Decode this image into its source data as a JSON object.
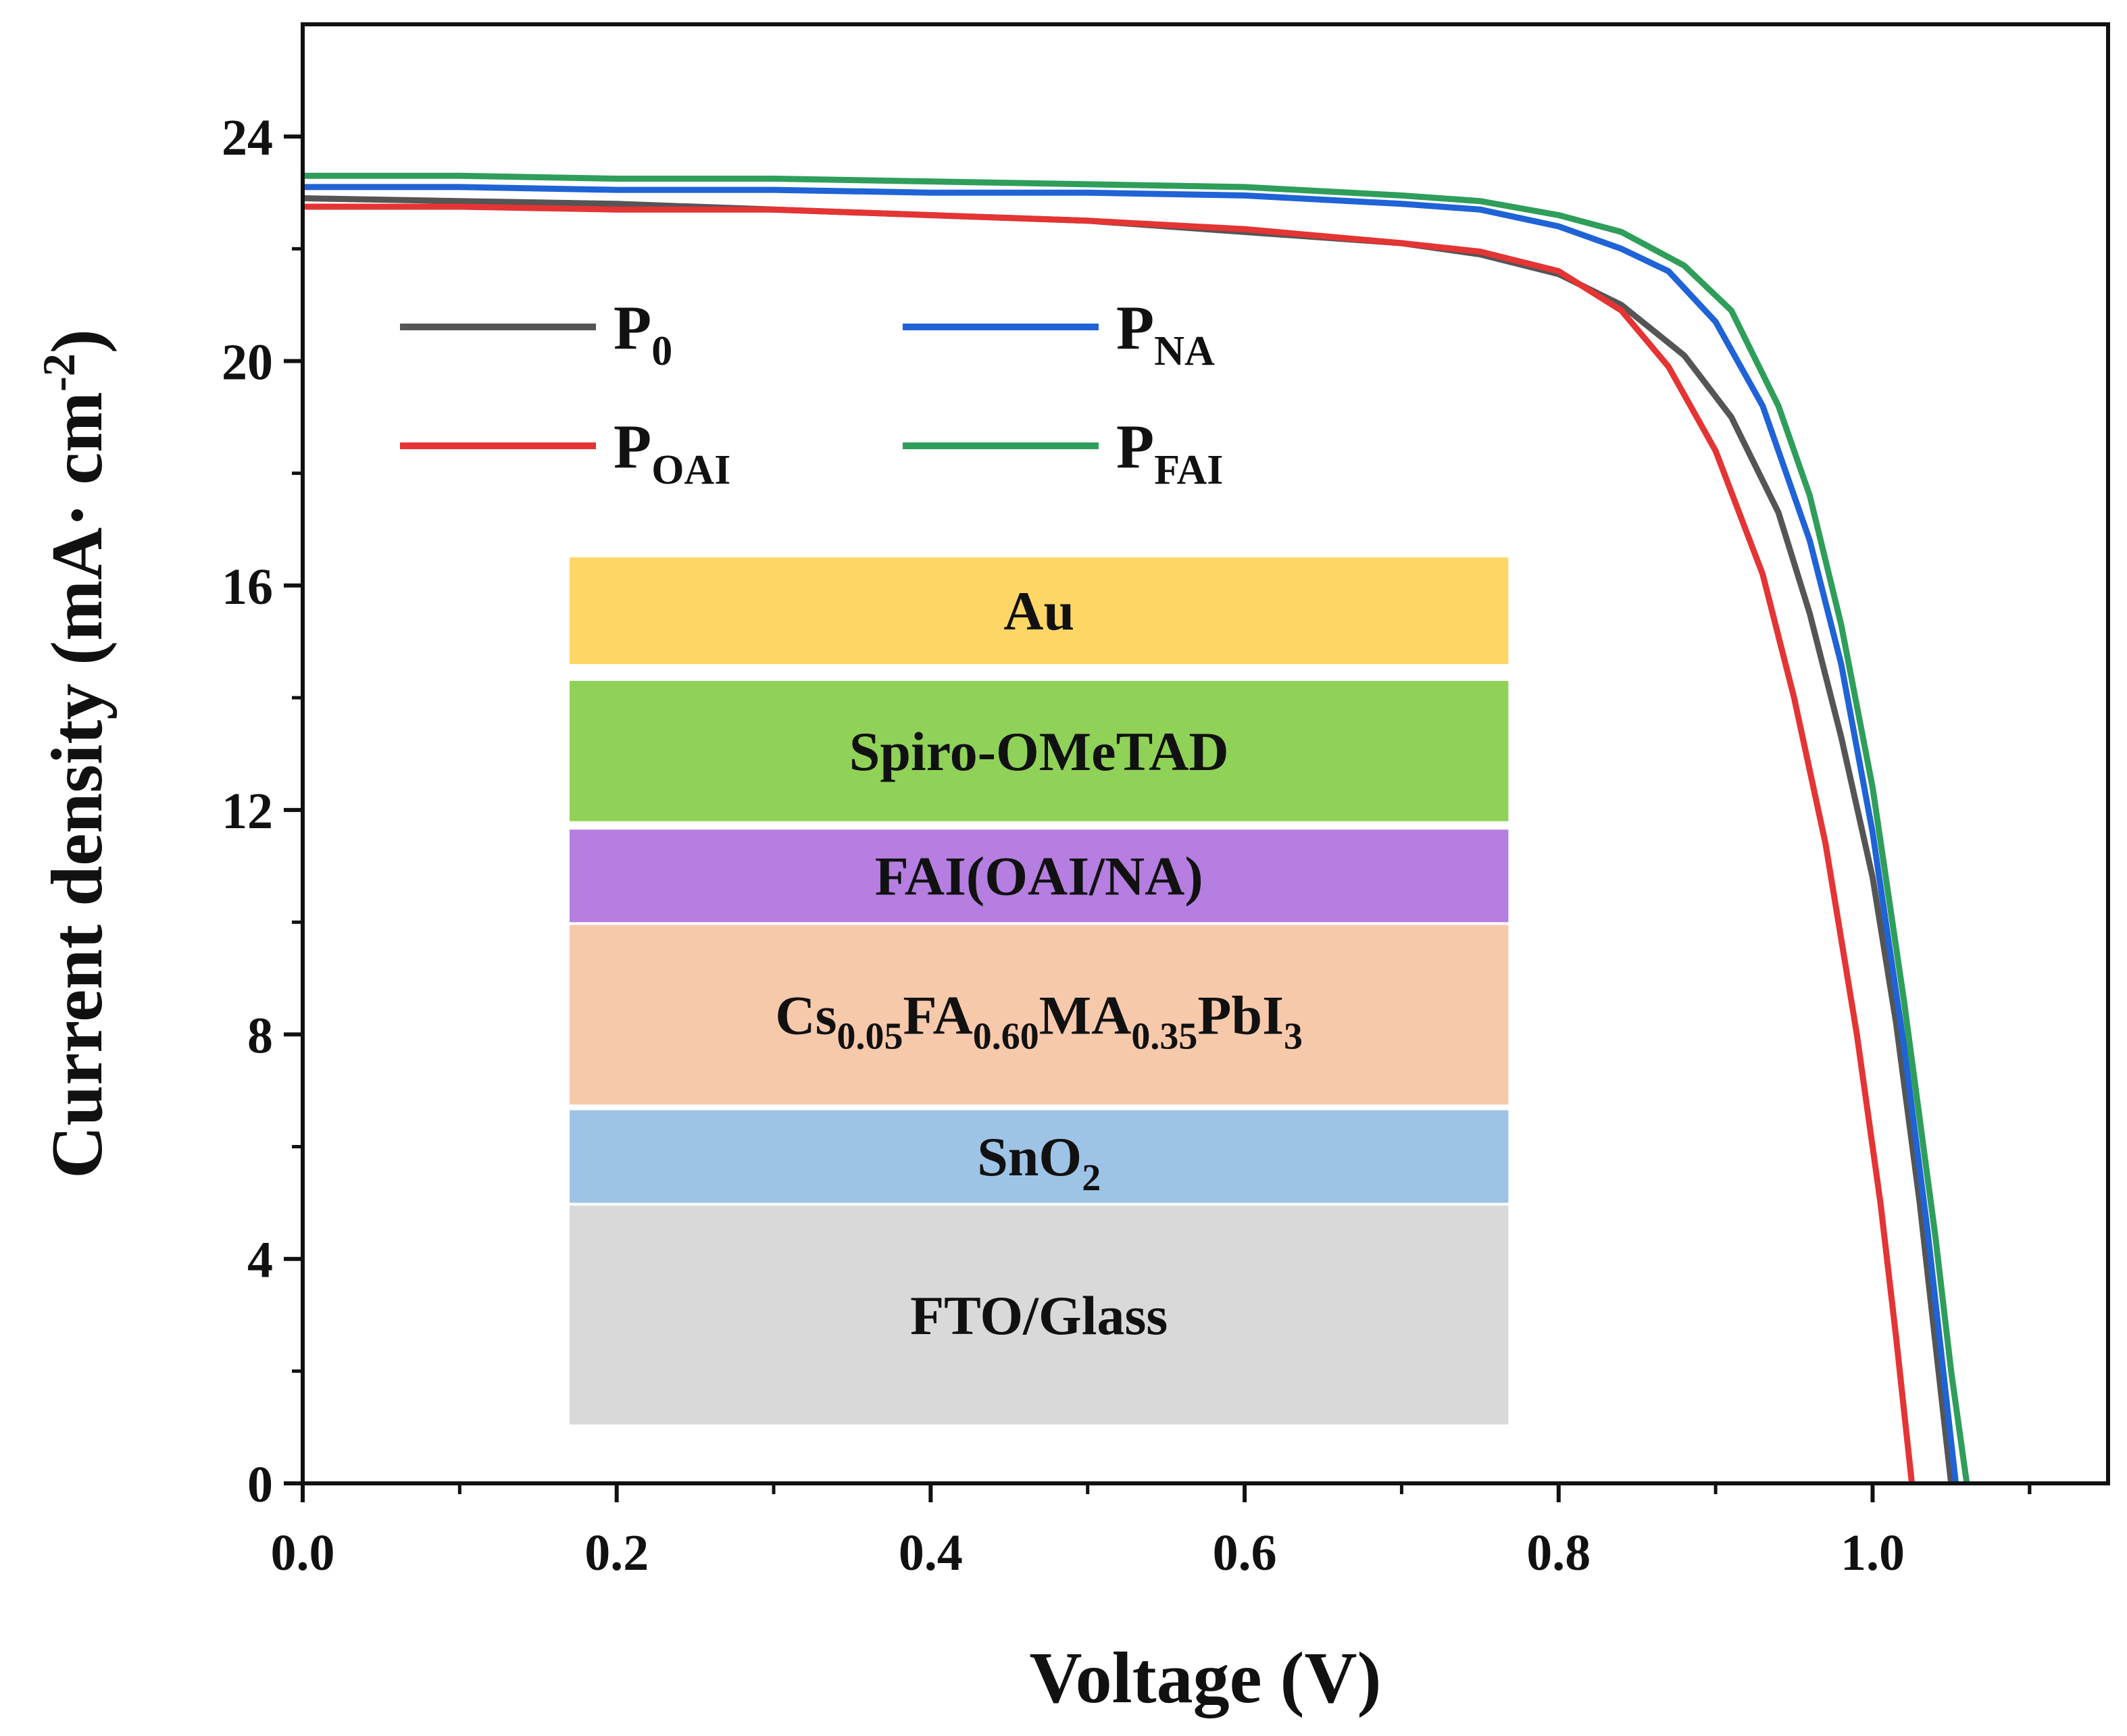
{
  "chart_data": {
    "type": "line",
    "xlabel": "Voltage (V)",
    "ylabel": {
      "main": "Current density (mA· cm",
      "sup": "-2",
      "close": ")"
    },
    "xlim": [
      0,
      1.15
    ],
    "ylim": [
      0,
      26
    ],
    "x_ticks": [
      0.0,
      0.2,
      0.4,
      0.6,
      0.8,
      1.0
    ],
    "x_tick_labels": [
      "0.0",
      "0.2",
      "0.4",
      "0.6",
      "0.8",
      "1.0"
    ],
    "y_ticks": [
      0,
      4,
      8,
      12,
      16,
      20,
      24
    ],
    "y_tick_labels": [
      "0",
      "4",
      "8",
      "12",
      "16",
      "20",
      "24"
    ],
    "series": [
      {
        "name": "P0",
        "label_main": "P",
        "label_sub": "0",
        "color": "#555555",
        "points": [
          [
            0,
            22.9
          ],
          [
            0.1,
            22.85
          ],
          [
            0.2,
            22.8
          ],
          [
            0.3,
            22.7
          ],
          [
            0.4,
            22.6
          ],
          [
            0.5,
            22.5
          ],
          [
            0.6,
            22.3
          ],
          [
            0.7,
            22.1
          ],
          [
            0.75,
            21.9
          ],
          [
            0.8,
            21.55
          ],
          [
            0.84,
            21.0
          ],
          [
            0.88,
            20.1
          ],
          [
            0.91,
            19.0
          ],
          [
            0.94,
            17.3
          ],
          [
            0.96,
            15.5
          ],
          [
            0.98,
            13.3
          ],
          [
            1.0,
            10.8
          ],
          [
            1.015,
            8.2
          ],
          [
            1.03,
            5.0
          ],
          [
            1.04,
            2.5
          ],
          [
            1.05,
            0
          ]
        ]
      },
      {
        "name": "PNA",
        "label_main": "P",
        "label_sub": "NA",
        "color": "#1f63d6",
        "points": [
          [
            0,
            23.1
          ],
          [
            0.1,
            23.1
          ],
          [
            0.2,
            23.05
          ],
          [
            0.3,
            23.05
          ],
          [
            0.4,
            23.0
          ],
          [
            0.5,
            23.0
          ],
          [
            0.6,
            22.95
          ],
          [
            0.7,
            22.8
          ],
          [
            0.75,
            22.7
          ],
          [
            0.8,
            22.4
          ],
          [
            0.84,
            22.0
          ],
          [
            0.87,
            21.6
          ],
          [
            0.9,
            20.7
          ],
          [
            0.93,
            19.2
          ],
          [
            0.96,
            16.8
          ],
          [
            0.98,
            14.6
          ],
          [
            1.0,
            11.6
          ],
          [
            1.02,
            7.8
          ],
          [
            1.035,
            4.5
          ],
          [
            1.045,
            2.0
          ],
          [
            1.053,
            0
          ]
        ]
      },
      {
        "name": "POAI",
        "label_main": "P",
        "label_sub": "OAI",
        "color": "#e43434",
        "points": [
          [
            0,
            22.75
          ],
          [
            0.1,
            22.75
          ],
          [
            0.2,
            22.7
          ],
          [
            0.3,
            22.7
          ],
          [
            0.4,
            22.6
          ],
          [
            0.5,
            22.5
          ],
          [
            0.6,
            22.35
          ],
          [
            0.7,
            22.1
          ],
          [
            0.75,
            21.95
          ],
          [
            0.8,
            21.6
          ],
          [
            0.84,
            20.9
          ],
          [
            0.87,
            19.9
          ],
          [
            0.9,
            18.4
          ],
          [
            0.93,
            16.2
          ],
          [
            0.95,
            14.0
          ],
          [
            0.97,
            11.4
          ],
          [
            0.99,
            8.0
          ],
          [
            1.005,
            5.0
          ],
          [
            1.015,
            2.6
          ],
          [
            1.025,
            0
          ]
        ]
      },
      {
        "name": "PFAI",
        "label_main": "P",
        "label_sub": "FAI",
        "color": "#2e9e5a",
        "points": [
          [
            0,
            23.3
          ],
          [
            0.1,
            23.3
          ],
          [
            0.2,
            23.25
          ],
          [
            0.3,
            23.25
          ],
          [
            0.4,
            23.2
          ],
          [
            0.5,
            23.15
          ],
          [
            0.6,
            23.1
          ],
          [
            0.7,
            22.95
          ],
          [
            0.75,
            22.85
          ],
          [
            0.8,
            22.6
          ],
          [
            0.84,
            22.3
          ],
          [
            0.88,
            21.7
          ],
          [
            0.91,
            20.9
          ],
          [
            0.94,
            19.2
          ],
          [
            0.96,
            17.6
          ],
          [
            0.98,
            15.3
          ],
          [
            1.0,
            12.4
          ],
          [
            1.02,
            8.6
          ],
          [
            1.04,
            4.4
          ],
          [
            1.05,
            2.0
          ],
          [
            1.06,
            0
          ]
        ]
      }
    ],
    "legend": {
      "placement": "top-left"
    },
    "inset_layers": [
      {
        "name": "au",
        "label": "Au",
        "color": "#fdd666"
      },
      {
        "name": "spiro",
        "label": "Spiro-OMeTAD",
        "color": "#90d158"
      },
      {
        "name": "fai",
        "label": "FAI(OAI/NA)",
        "color": "#b57ee0"
      },
      {
        "name": "perovskite",
        "label": "",
        "color": "#f7c9ab",
        "formula": [
          {
            "t": "Cs",
            "sub": false
          },
          {
            "t": "0.05",
            "sub": true
          },
          {
            "t": "FA",
            "sub": false
          },
          {
            "t": "0.60",
            "sub": true
          },
          {
            "t": "MA",
            "sub": false
          },
          {
            "t": "0.35",
            "sub": true
          },
          {
            "t": "PbI",
            "sub": false
          },
          {
            "t": "3",
            "sub": true
          }
        ]
      },
      {
        "name": "sno2",
        "label": "",
        "color": "#9dc4e6",
        "formula": [
          {
            "t": "SnO",
            "sub": false
          },
          {
            "t": "2",
            "sub": true
          }
        ]
      },
      {
        "name": "fto",
        "label": "FTO/Glass",
        "color": "#d9d9d9"
      }
    ]
  }
}
